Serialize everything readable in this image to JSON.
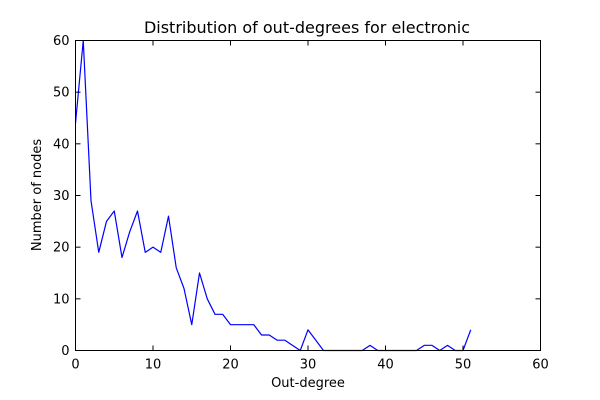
{
  "chart_data": {
    "type": "line",
    "title": "Distribution of out-degrees for electronic",
    "xlabel": "Out-degree",
    "ylabel": "Number of nodes",
    "xlim": [
      0,
      60
    ],
    "ylim": [
      0,
      60
    ],
    "xticks": [
      0,
      10,
      20,
      30,
      40,
      50,
      60
    ],
    "yticks": [
      0,
      10,
      20,
      30,
      40,
      50,
      60
    ],
    "grid": false,
    "series": [
      {
        "color": "#0000ff",
        "x": [
          0,
          1,
          2,
          3,
          4,
          5,
          6,
          7,
          8,
          9,
          10,
          11,
          12,
          13,
          14,
          15,
          16,
          17,
          18,
          19,
          20,
          21,
          22,
          23,
          24,
          25,
          26,
          27,
          28,
          29,
          30,
          31,
          32,
          33,
          34,
          35,
          36,
          37,
          38,
          39,
          40,
          41,
          42,
          43,
          44,
          45,
          46,
          47,
          48,
          49,
          50,
          51
        ],
        "y": [
          44,
          60,
          29,
          19,
          25,
          27,
          18,
          23,
          27,
          19,
          20,
          19,
          26,
          16,
          12,
          5,
          15,
          10,
          7,
          7,
          5,
          5,
          5,
          5,
          3,
          3,
          2,
          2,
          1,
          0,
          4,
          2,
          0,
          0,
          0,
          0,
          0,
          0,
          1,
          0,
          0,
          0,
          0,
          0,
          0,
          1,
          1,
          0,
          1,
          0,
          0,
          4
        ]
      }
    ]
  }
}
